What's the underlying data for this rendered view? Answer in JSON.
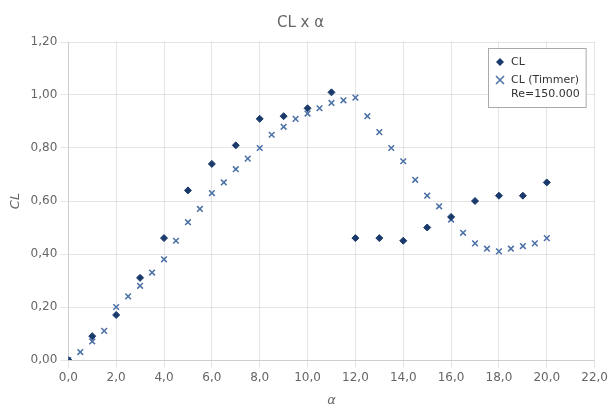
{
  "chart_data": {
    "type": "scatter",
    "title": "CL x α",
    "xlabel": "α",
    "ylabel": "CL",
    "xlim": [
      0.0,
      22.0
    ],
    "ylim": [
      0.0,
      1.2
    ],
    "xticks": [
      {
        "value": 0.0,
        "label": "0,0"
      },
      {
        "value": 2.0,
        "label": "2,0"
      },
      {
        "value": 4.0,
        "label": "4,0"
      },
      {
        "value": 6.0,
        "label": "6,0"
      },
      {
        "value": 8.0,
        "label": "8,0"
      },
      {
        "value": 10.0,
        "label": "10,0"
      },
      {
        "value": 12.0,
        "label": "12,0"
      },
      {
        "value": 14.0,
        "label": "14,0"
      },
      {
        "value": 16.0,
        "label": "16,0"
      },
      {
        "value": 18.0,
        "label": "18,0"
      },
      {
        "value": 20.0,
        "label": "20,0"
      },
      {
        "value": 22.0,
        "label": "22,0"
      }
    ],
    "yticks": [
      {
        "value": 0.0,
        "label": "0,00"
      },
      {
        "value": 0.2,
        "label": "0,20"
      },
      {
        "value": 0.4,
        "label": "0,40"
      },
      {
        "value": 0.6,
        "label": "0,60"
      },
      {
        "value": 0.8,
        "label": "0,80"
      },
      {
        "value": 1.0,
        "label": "1,00"
      },
      {
        "value": 1.2,
        "label": "1,20"
      }
    ],
    "grid": true,
    "legend": "upper right",
    "series": [
      {
        "name": "CL",
        "color": "#1a3a6b",
        "marker": "diamond",
        "x": [
          0.0,
          1.0,
          2.0,
          3.0,
          4.0,
          5.0,
          6.0,
          7.0,
          8.0,
          9.0,
          10.0,
          11.0,
          12.0,
          13.0,
          14.0,
          15.0,
          16.0,
          17.0,
          18.0,
          19.0,
          20.0
        ],
        "values": [
          0.0,
          0.09,
          0.17,
          0.31,
          0.46,
          0.64,
          0.74,
          0.81,
          0.91,
          0.92,
          0.95,
          1.01,
          0.46,
          0.46,
          0.45,
          0.5,
          0.54,
          0.6,
          0.62,
          0.62,
          0.67
        ]
      },
      {
        "name": "CL (Timmer)\nRe=150.000",
        "color": "#4a6fa5",
        "marker": "x",
        "x": [
          0.0,
          0.5,
          1.0,
          1.5,
          2.0,
          2.5,
          3.0,
          3.5,
          4.0,
          4.5,
          5.0,
          5.5,
          6.0,
          6.5,
          7.0,
          7.5,
          8.0,
          8.5,
          9.0,
          9.5,
          10.0,
          10.5,
          11.0,
          11.5,
          12.0,
          12.5,
          13.0,
          13.5,
          14.0,
          14.5,
          15.0,
          15.5,
          16.0,
          16.5,
          17.0,
          17.5,
          18.0,
          18.5,
          19.0,
          19.5,
          20.0
        ],
        "values": [
          0.0,
          0.03,
          0.07,
          0.11,
          0.2,
          0.24,
          0.28,
          0.33,
          0.38,
          0.45,
          0.52,
          0.57,
          0.63,
          0.67,
          0.72,
          0.76,
          0.8,
          0.85,
          0.88,
          0.91,
          0.93,
          0.95,
          0.97,
          0.98,
          0.99,
          0.92,
          0.86,
          0.8,
          0.75,
          0.68,
          0.62,
          0.58,
          0.53,
          0.48,
          0.44,
          0.42,
          0.41,
          0.42,
          0.43,
          0.44,
          0.46
        ]
      }
    ]
  }
}
